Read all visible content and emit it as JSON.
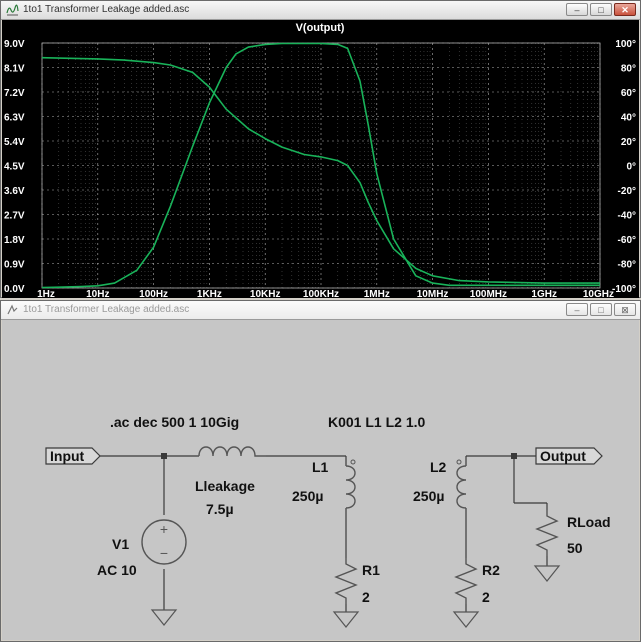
{
  "plot_window": {
    "title": "1to1 Transformer Leakage added.asc",
    "buttons": {
      "minimize": "–",
      "maximize": "□",
      "close": "✕"
    }
  },
  "schematic_window": {
    "title": "1to1 Transformer Leakage added.asc",
    "buttons": {
      "minimize": "–",
      "maximize": "□",
      "close": "⊠"
    }
  },
  "colors": {
    "plot_background": "#000000",
    "trace": "#19b35a",
    "grid": "#b0b0b0",
    "schematic_background": "#c6c6c6",
    "wire": "#3a3a3a",
    "component": "#555555",
    "junction": "#3a3a3a"
  },
  "chart_data": {
    "type": "line",
    "title": "V(output)",
    "x_scale": "log",
    "x_ticks": [
      "1Hz",
      "10Hz",
      "100Hz",
      "1KHz",
      "10KHz",
      "100KHz",
      "1MHz",
      "10MHz",
      "100MHz",
      "1GHz",
      "10GHz"
    ],
    "y_left_ticks": [
      "9.0V",
      "8.1V",
      "7.2V",
      "6.3V",
      "5.4V",
      "4.5V",
      "3.6V",
      "2.7V",
      "1.8V",
      "0.9V",
      "0.0V"
    ],
    "y_right_ticks": [
      "100°",
      "80°",
      "60°",
      "40°",
      "20°",
      "0°",
      "-20°",
      "-40°",
      "-60°",
      "-80°",
      "-100°"
    ],
    "ylim_left": [
      0,
      9
    ],
    "ylim_right": [
      -100,
      100
    ],
    "grid": true,
    "series": [
      {
        "axis": "left",
        "x": [
          1,
          2,
          5,
          10,
          20,
          50,
          100,
          200,
          500,
          1000,
          2000,
          3000,
          5000,
          10000,
          20000,
          50000,
          100000,
          200000,
          300000,
          500000,
          700000,
          1000000,
          2000000,
          5000000,
          10000000,
          20000000,
          100000000,
          1000000000,
          10000000000
        ],
        "values": [
          0.02,
          0.03,
          0.05,
          0.08,
          0.18,
          0.65,
          1.5,
          3.0,
          5.2,
          6.8,
          8.1,
          8.6,
          8.85,
          8.95,
          8.98,
          8.98,
          8.98,
          8.95,
          8.8,
          7.6,
          6.0,
          4.2,
          1.8,
          0.45,
          0.18,
          0.1,
          0.1,
          0.1,
          0.1
        ]
      },
      {
        "axis": "right",
        "x": [
          1,
          10,
          30,
          100,
          200,
          500,
          1000,
          2000,
          5000,
          10000,
          20000,
          50000,
          100000,
          200000,
          300000,
          500000,
          700000,
          1000000,
          2000000,
          5000000,
          10000000,
          30000000,
          100000000,
          1000000000,
          10000000000
        ],
        "values": [
          88,
          87,
          86,
          84,
          82,
          76,
          64,
          46,
          30,
          22,
          15,
          9,
          7,
          4,
          0,
          -14,
          -30,
          -45,
          -68,
          -84,
          -90,
          -94,
          -95,
          -96,
          -96
        ]
      }
    ]
  },
  "schematic": {
    "directives": {
      "ac": ".ac dec 500 1 10Gig",
      "coupling": "K001 L1 L2 1.0"
    },
    "ports": {
      "input": "Input",
      "output": "Output"
    },
    "lleakage": {
      "name": "Lleakage",
      "value": "7.5µ"
    },
    "l1": {
      "name": "L1",
      "value": "250µ"
    },
    "l2": {
      "name": "L2",
      "value": "250µ"
    },
    "r1": {
      "name": "R1",
      "value": "2"
    },
    "r2": {
      "name": "R2",
      "value": "2"
    },
    "rload": {
      "name": "RLoad",
      "value": "50"
    },
    "v1": {
      "name": "V1",
      "value": "AC 10",
      "plus": "+",
      "minus": "−"
    }
  }
}
